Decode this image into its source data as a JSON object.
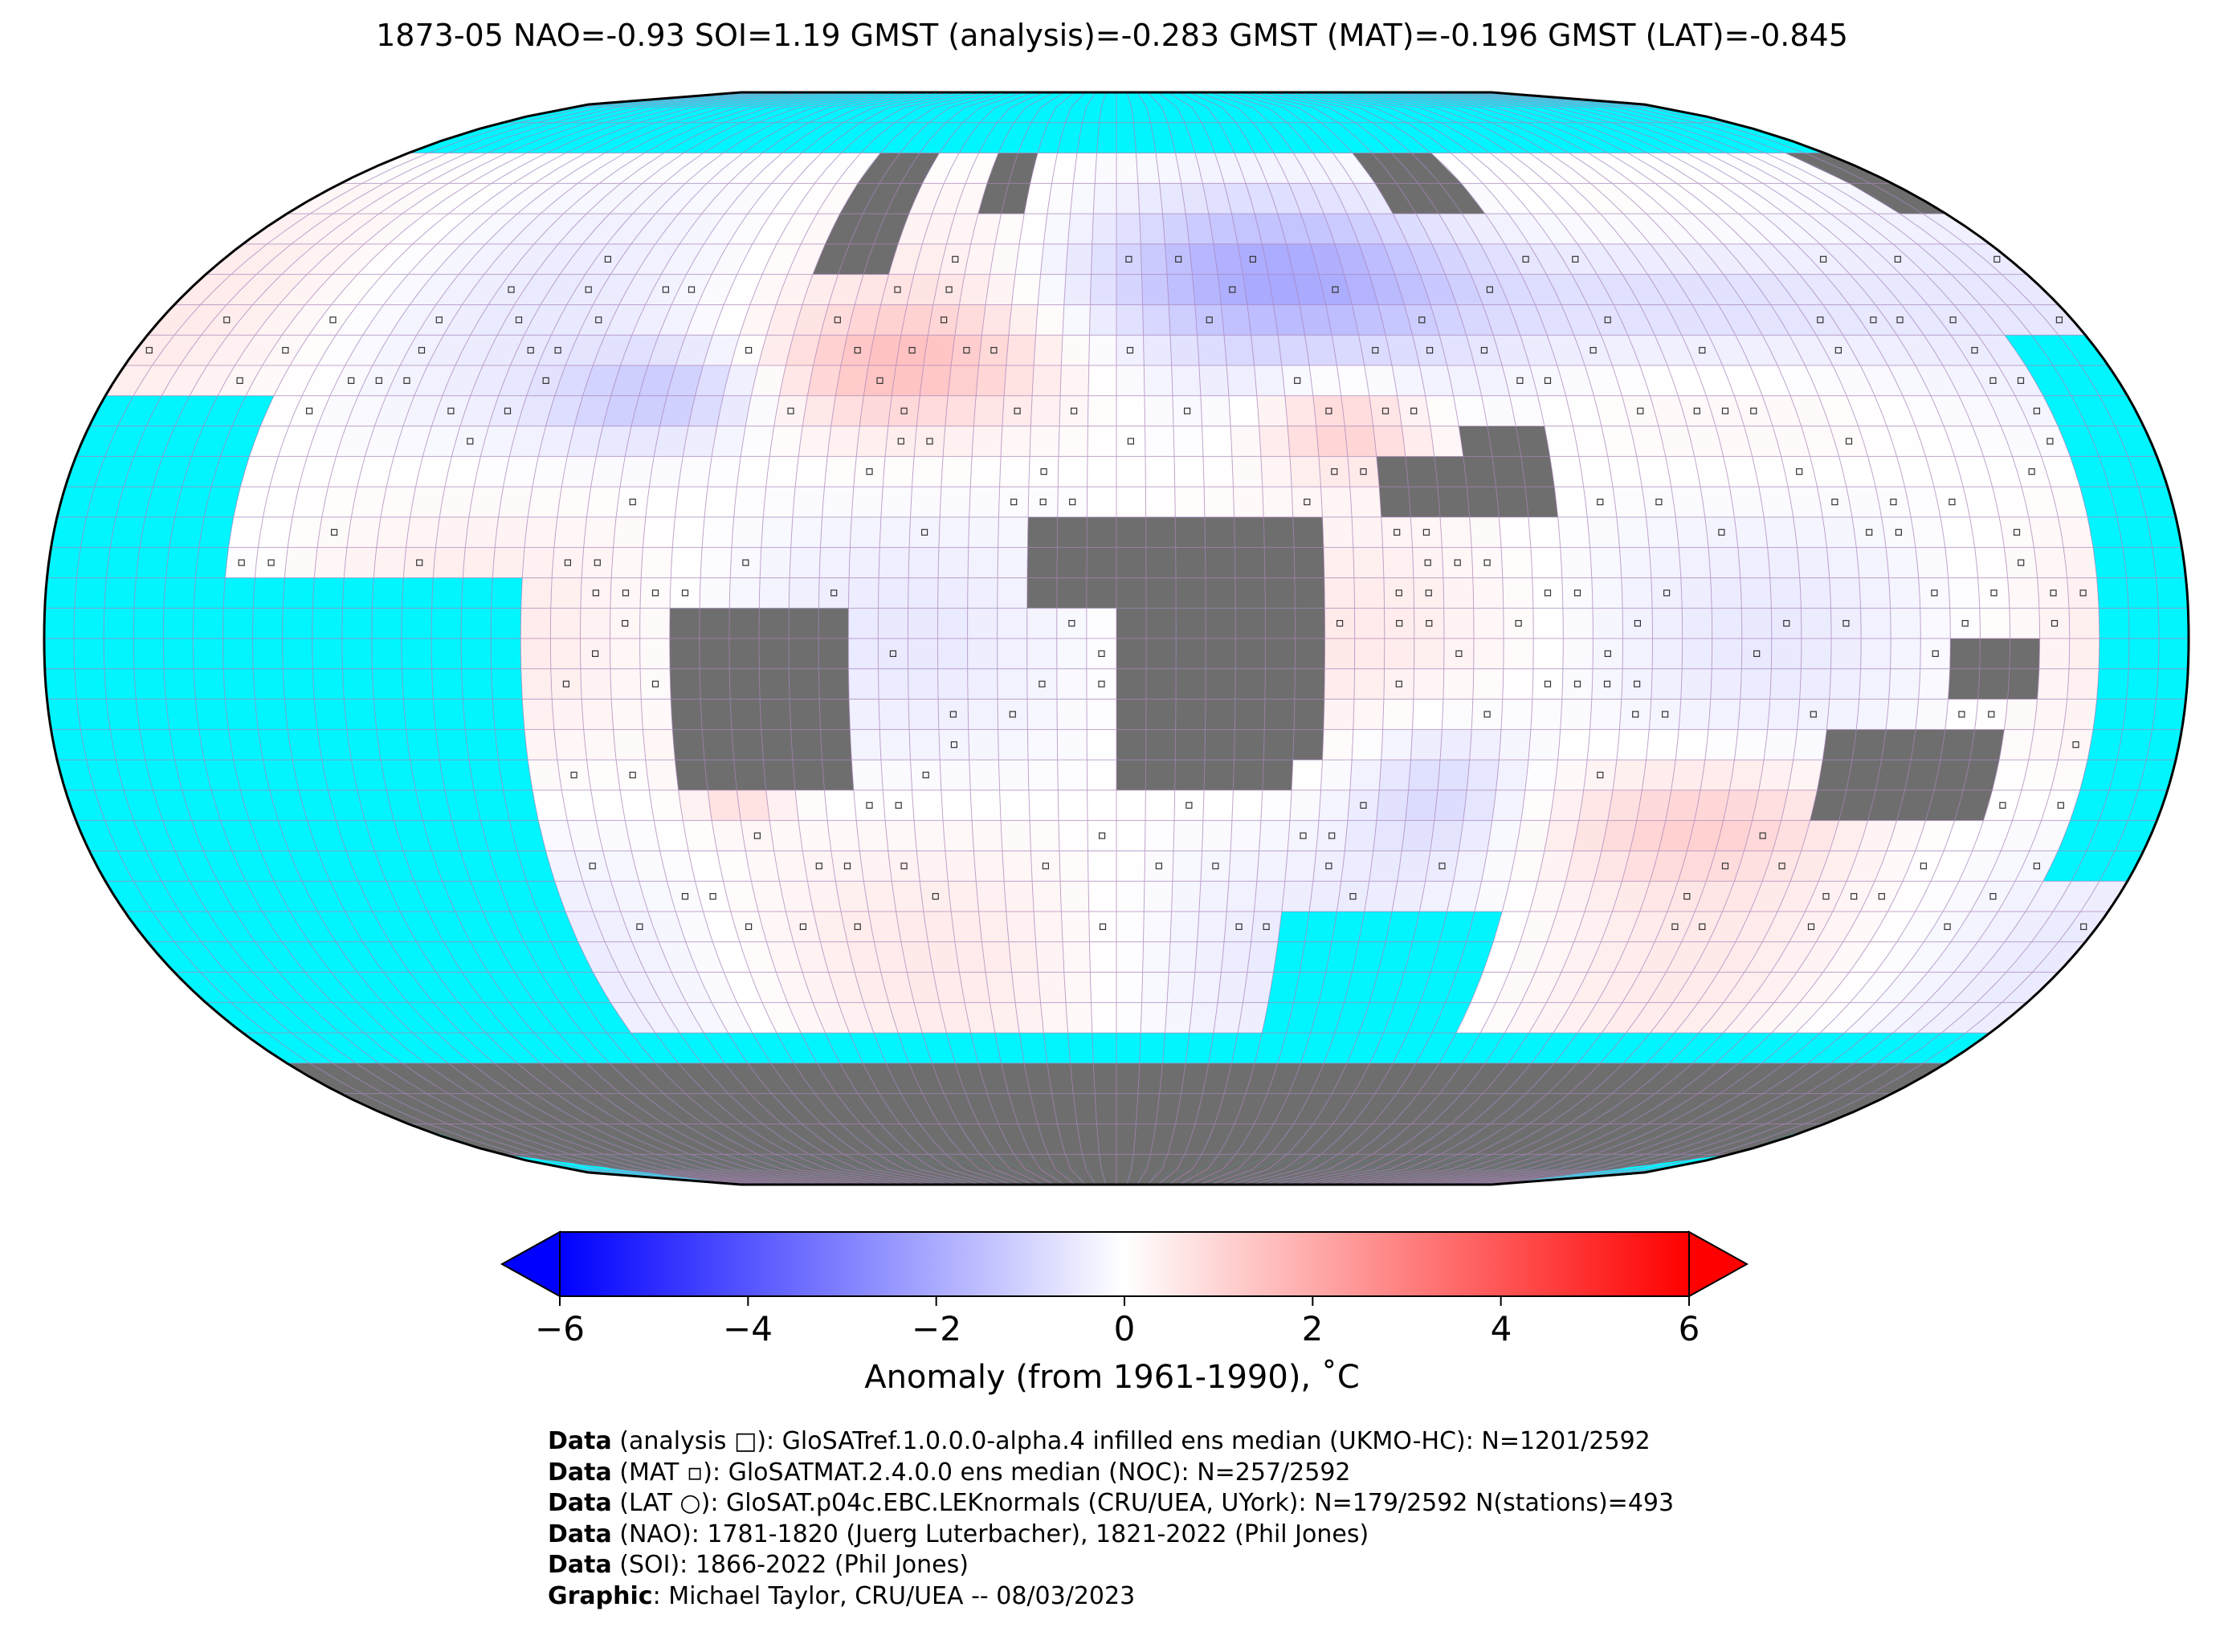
{
  "title": "1873-05 NAO=-0.93 SOI=1.19 GMST (analysis)=-0.283 GMST (MAT)=-0.196 GMST (LAT)=-0.845",
  "colors": {
    "ocean_no_data": "#00f5ff",
    "land_no_data": "#6e6e6e",
    "grid_line": "#b080b8",
    "cold": "#0000ff",
    "neutral": "#ffffff",
    "warm": "#ff0000",
    "outline": "#000000"
  },
  "colorbar": {
    "ticks": [
      "−6",
      "−4",
      "−2",
      "0",
      "2",
      "4",
      "6"
    ],
    "tick_values": [
      -6,
      -4,
      -2,
      0,
      2,
      4,
      6
    ],
    "range": [
      -6,
      6
    ],
    "label": "Anomaly (from 1961-1990), ˚C"
  },
  "credits": [
    {
      "bold": "Data",
      "text": " (analysis □): GloSATref.1.0.0.0-alpha.4 infilled ens median (UKMO-HC): N=1201/2592"
    },
    {
      "bold": "Data",
      "text": " (MAT ▫): GloSATMAT.2.4.0.0 ens median (NOC): N=257/2592"
    },
    {
      "bold": "Data",
      "text": " (LAT ○): GloSAT.p04c.EBC.LEKnormals (CRU/UEA, UYork): N=179/2592 N(stations)=493"
    },
    {
      "bold": "Data",
      "text": " (NAO): 1781-1820 (Juerg Luterbacher), 1821-2022 (Phil Jones)"
    },
    {
      "bold": "Data",
      "text": " (SOI): 1866-2022 (Phil Jones)"
    },
    {
      "bold": "Graphic",
      "text": ": Michael Taylor, CRU/UEA -- 08/03/2023"
    }
  ]
}
